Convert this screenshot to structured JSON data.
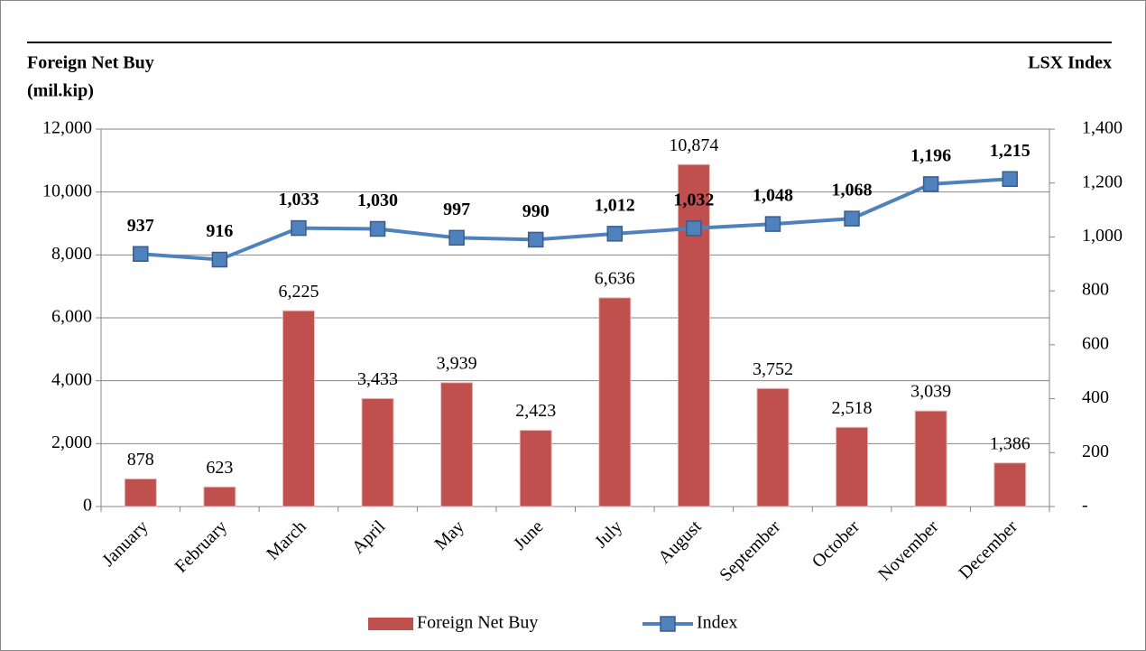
{
  "chart_data": {
    "type": "bar-line",
    "y_label": [
      "Foreign Net Buy",
      "(mil.kip)"
    ],
    "y2_label": "LSX Index",
    "categories": [
      "January",
      "February",
      "March",
      "April",
      "May",
      "June",
      "July",
      "August",
      "September",
      "October",
      "November",
      "December"
    ],
    "series": [
      {
        "name": "Foreign Net Buy",
        "type": "bar",
        "color": "#c0504d",
        "label_color": "#c00000",
        "values": [
          878,
          623,
          6225,
          3433,
          3939,
          2423,
          6636,
          10874,
          3752,
          2518,
          3039,
          1386
        ],
        "value_labels": [
          "878",
          "623",
          "6,225",
          "3,433",
          "3,939",
          "2,423",
          "6,636",
          "10,874",
          "3,752",
          "2,518",
          "3,039",
          "1,386"
        ]
      },
      {
        "name": "Index",
        "type": "line",
        "axis": "y2",
        "color": "#4f81bd",
        "marker_edge": "#385d8a",
        "label_color": "#000000",
        "values": [
          937,
          916,
          1033,
          1030,
          997,
          990,
          1012,
          1032,
          1048,
          1068,
          1196,
          1215
        ],
        "value_labels": [
          "937",
          "916",
          "1,033",
          "1,030",
          "997",
          "990",
          "1,012",
          "1,032",
          "1,048",
          "1,068",
          "1,196",
          "1,215"
        ]
      }
    ],
    "ylim": [
      0,
      12000
    ],
    "yticks": [
      0,
      {
        "value": 2000,
        "label": "2,000"
      },
      {
        "value": 4000,
        "label": "4,000"
      },
      {
        "value": 6000,
        "label": "6,000"
      },
      {
        "value": 8000,
        "label": "8,000"
      },
      {
        "value": 10000,
        "label": "10,000"
      },
      {
        "value": 12000,
        "label": "12,000"
      }
    ],
    "y2lim": [
      0,
      1400
    ],
    "y2ticks": [
      {
        "value": 0,
        "label": "-"
      },
      200,
      400,
      600,
      800,
      {
        "value": 1000,
        "label": "1,000"
      },
      {
        "value": 1200,
        "label": "1,200"
      },
      {
        "value": 1400,
        "label": "1,400"
      }
    ],
    "grid": true,
    "legend": "bottom"
  }
}
